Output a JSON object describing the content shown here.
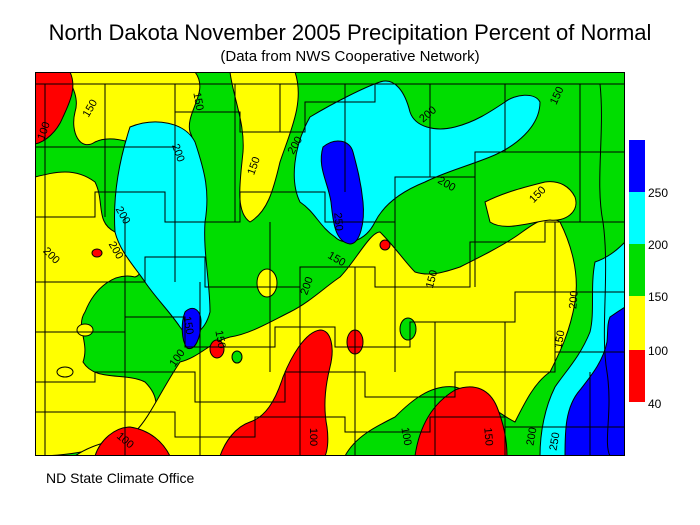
{
  "title": "North Dakota November 2005 Precipitation Percent of Normal",
  "subtitle": "(Data from NWS Cooperative Network)",
  "credit": "ND State Climate Office",
  "legend": {
    "labels": [
      "250",
      "200",
      "150",
      "100",
      "40"
    ],
    "classes": [
      {
        "range": "40-100",
        "color": "#ff0000"
      },
      {
        "range": "100-150",
        "color": "#ffff00"
      },
      {
        "range": "150-200",
        "color": "#00dd00"
      },
      {
        "range": "200-250",
        "color": "#00ffff"
      },
      {
        "range": "250+",
        "color": "#0000ff"
      }
    ]
  },
  "contour_labels": [
    "100",
    "150",
    "150",
    "200",
    "150",
    "200",
    "200",
    "200",
    "200",
    "150",
    "200",
    "150",
    "200",
    "150",
    "200",
    "150",
    "250",
    "200",
    "150",
    "150",
    "100",
    "150",
    "100",
    "100",
    "150",
    "200",
    "250",
    "100"
  ]
}
